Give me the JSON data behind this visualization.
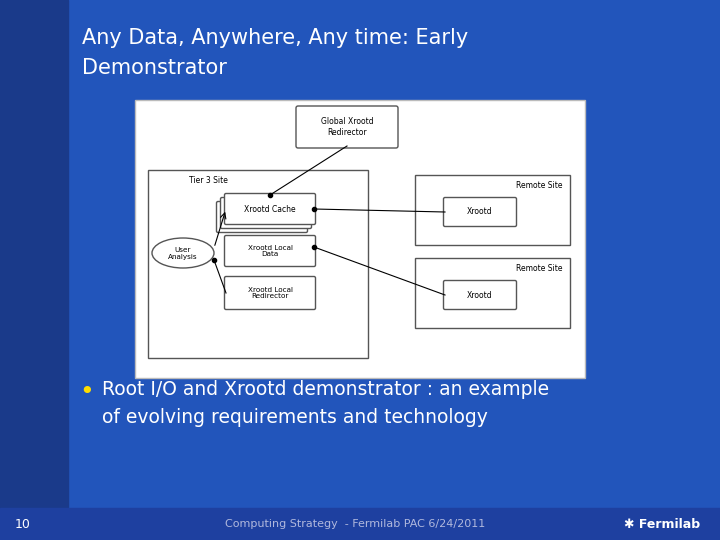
{
  "title_line1": "Any Data, Anywhere, Any time: Early",
  "title_line2": "Demonstrator",
  "bullet_text_line1": "Root I/O and Xrootd demonstrator : an example",
  "bullet_text_line2": "of evolving requirements and technology",
  "footer_left_num": "10",
  "footer_center": "Computing Strategy  - Fermilab PAC 6/24/2011",
  "bg_color": "#2255bb",
  "title_color": "#ffffff",
  "bullet_color": "#ffffff",
  "bullet_dot_color": "#ffdd00",
  "left_accent_color": "#1a3a8a",
  "bottom_accent_color": "#1a3a8a",
  "footer_bar_color": "#1e40a0"
}
